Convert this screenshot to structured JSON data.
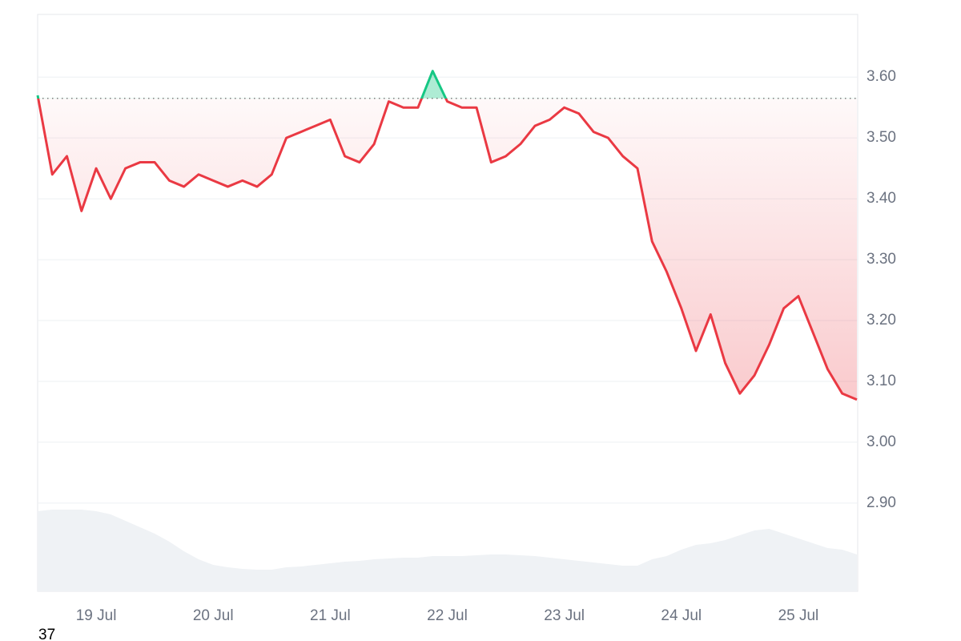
{
  "chart_data": {
    "type": "line",
    "categories": [
      null,
      null,
      null,
      null,
      "19 Jul",
      null,
      null,
      null,
      null,
      null,
      null,
      null,
      "20 Jul",
      null,
      null,
      null,
      null,
      null,
      null,
      null,
      "21 Jul",
      null,
      null,
      null,
      null,
      null,
      null,
      null,
      "22 Jul",
      null,
      null,
      null,
      null,
      null,
      null,
      null,
      "23 Jul",
      null,
      null,
      null,
      null,
      null,
      null,
      null,
      "24 Jul",
      null,
      null,
      null,
      null,
      null,
      null,
      null,
      "25 Jul",
      null,
      null,
      null,
      null
    ],
    "values": [
      3.57,
      3.44,
      3.47,
      3.38,
      3.45,
      3.4,
      3.45,
      3.46,
      3.46,
      3.43,
      3.42,
      3.44,
      3.43,
      3.42,
      3.43,
      3.42,
      3.44,
      3.5,
      3.51,
      3.52,
      3.53,
      3.47,
      3.46,
      3.49,
      3.56,
      3.55,
      3.55,
      3.61,
      3.56,
      3.55,
      3.55,
      3.46,
      3.47,
      3.49,
      3.52,
      3.53,
      3.55,
      3.54,
      3.51,
      3.5,
      3.47,
      3.45,
      3.33,
      3.28,
      3.22,
      3.15,
      3.21,
      3.13,
      3.08,
      3.11,
      3.16,
      3.22,
      3.24,
      3.18,
      3.12,
      3.08,
      3.07
    ],
    "baseline": 3.565,
    "color_up": "#16c784",
    "color_down": "#ea3943",
    "volume": {
      "color": "#eff2f5",
      "values": [
        100,
        102,
        102,
        102,
        100,
        96,
        88,
        80,
        72,
        62,
        50,
        40,
        33,
        30,
        28,
        27,
        27,
        30,
        31,
        33,
        35,
        37,
        38,
        40,
        41,
        42,
        42,
        44,
        44,
        44,
        45,
        46,
        46,
        45,
        44,
        42,
        40,
        38,
        36,
        34,
        32,
        32,
        40,
        44,
        52,
        58,
        60,
        64,
        70,
        76,
        78,
        72,
        66,
        60,
        54,
        52,
        46
      ]
    },
    "ylim": [
      2.755,
      3.703
    ],
    "yticks": [
      {
        "value": 2.9,
        "label": "2.90"
      },
      {
        "value": 3.0,
        "label": "3.00"
      },
      {
        "value": 3.1,
        "label": "3.10"
      },
      {
        "value": 3.2,
        "label": "3.20"
      },
      {
        "value": 3.3,
        "label": "3.30"
      },
      {
        "value": 3.4,
        "label": "3.40"
      },
      {
        "value": 3.5,
        "label": "3.50"
      },
      {
        "value": 3.6,
        "label": "3.60"
      }
    ],
    "grid": true,
    "footer": "37"
  }
}
